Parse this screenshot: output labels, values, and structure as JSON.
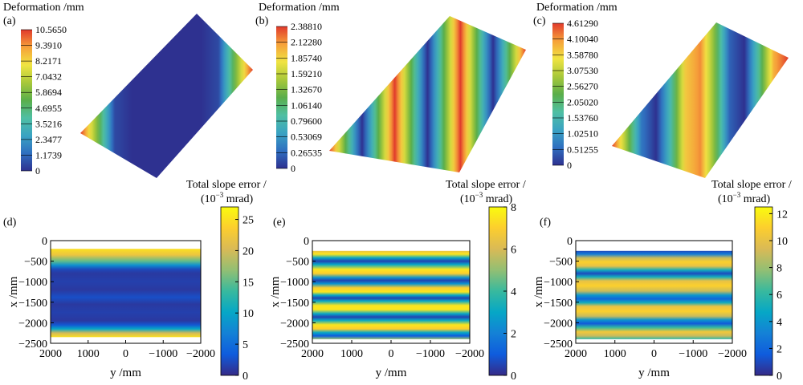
{
  "figure": {
    "panel_letters": [
      "(a)",
      "(b)",
      "(c)",
      "(d)",
      "(e)",
      "(f)"
    ],
    "deformation_title": "Deformation /mm",
    "slope_title_line1": "Total slope error /",
    "slope_title_line2_base": "(10",
    "slope_title_line2_exp": "−3",
    "slope_title_line2_unit": " mrad)",
    "xlabel": "y /mm",
    "ylabel": "x /mm"
  },
  "colormaps": {
    "jet": [
      "#2e3190",
      "#2f6fc0",
      "#3aa3c2",
      "#4fbfa3",
      "#5aae4a",
      "#a8c83a",
      "#f0e442",
      "#f6a13a",
      "#e03a2c"
    ],
    "parula": [
      "#352a87",
      "#0f5cdd",
      "#1481d6",
      "#06a7c6",
      "#38b99e",
      "#92bf73",
      "#d9ba56",
      "#fcce2e",
      "#f9fb0e"
    ]
  },
  "chart_data": [
    {
      "panel": "(a)",
      "type": "heatmap",
      "title": "Deformation /mm",
      "colorbar_ticks": [
        "10.5650",
        "9.3910",
        "8.2171",
        "7.0432",
        "5.8694",
        "4.6955",
        "3.5216",
        "2.3477",
        "1.1739",
        "0"
      ],
      "surface_profile": [
        1.0,
        0.55,
        0.05,
        0.0,
        0.0,
        0.0,
        0.0,
        0.0,
        0.05,
        0.55,
        1.0
      ]
    },
    {
      "panel": "(b)",
      "type": "heatmap",
      "title": "Deformation /mm",
      "colorbar_ticks": [
        "2.38810",
        "2.12280",
        "1.85740",
        "1.59210",
        "1.32670",
        "1.06140",
        "0.79600",
        "0.53069",
        "0.26535",
        "0"
      ],
      "surface_profile": [
        1.0,
        0.5,
        0.0,
        0.5,
        1.0,
        0.5,
        0.0,
        0.5,
        1.0,
        0.5,
        0.0,
        0.5,
        1.0
      ]
    },
    {
      "panel": "(c)",
      "type": "heatmap",
      "title": "Deformation /mm",
      "colorbar_ticks": [
        "4.61290",
        "4.10040",
        "3.58780",
        "3.07530",
        "2.56270",
        "2.05020",
        "1.53760",
        "1.02510",
        "0.51255",
        "0"
      ],
      "surface_profile": [
        1.0,
        0.6,
        0.15,
        0.0,
        0.35,
        0.8,
        0.9,
        0.55,
        0.1,
        0.0,
        0.4,
        0.85,
        1.0
      ]
    },
    {
      "panel": "(d)",
      "type": "heatmap",
      "title": "Total slope error / (10^-3 mrad)",
      "xlabel": "y /mm",
      "ylabel": "x /mm",
      "x_ticks": [
        2000,
        1000,
        0,
        -1000,
        -2000
      ],
      "y_ticks": [
        0,
        -500,
        -1000,
        -1500,
        -2000,
        -2500
      ],
      "xlim": [
        2000,
        -2000
      ],
      "ylim": [
        -2500,
        0
      ],
      "colorbar_range": [
        0,
        27
      ],
      "colorbar_ticks": [
        0,
        5,
        10,
        15,
        20,
        25
      ],
      "data_extent_x": [
        -200,
        -2350
      ],
      "row_profile": [
        [
          -200,
          25
        ],
        [
          -350,
          22
        ],
        [
          -500,
          15
        ],
        [
          -600,
          8
        ],
        [
          -700,
          2
        ],
        [
          -800,
          1
        ],
        [
          -1000,
          1.5
        ],
        [
          -1200,
          1
        ],
        [
          -1380,
          2.5
        ],
        [
          -1550,
          1
        ],
        [
          -1750,
          1.5
        ],
        [
          -1950,
          1
        ],
        [
          -2050,
          3
        ],
        [
          -2150,
          10
        ],
        [
          -2250,
          20
        ],
        [
          -2350,
          25
        ]
      ]
    },
    {
      "panel": "(e)",
      "type": "heatmap",
      "title": "Total slope error / (10^-3 mrad)",
      "xlabel": "y /mm",
      "ylabel": "x /mm",
      "x_ticks": [
        2000,
        1000,
        0,
        -1000,
        -2000
      ],
      "y_ticks": [
        0,
        -500,
        -1000,
        -1500,
        -2000,
        -2500
      ],
      "xlim": [
        2000,
        -2000
      ],
      "ylim": [
        -2500,
        0
      ],
      "colorbar_range": [
        0,
        8
      ],
      "colorbar_ticks": [
        0,
        2,
        4,
        6,
        8
      ],
      "data_extent_x": [
        -250,
        -2400
      ],
      "row_profile": [
        [
          -250,
          6.5
        ],
        [
          -330,
          7.5
        ],
        [
          -420,
          3
        ],
        [
          -500,
          0.5
        ],
        [
          -580,
          3
        ],
        [
          -700,
          7.5
        ],
        [
          -800,
          7
        ],
        [
          -900,
          2.5
        ],
        [
          -970,
          0.5
        ],
        [
          -1050,
          2.5
        ],
        [
          -1150,
          7
        ],
        [
          -1250,
          7.5
        ],
        [
          -1330,
          3
        ],
        [
          -1400,
          0.5
        ],
        [
          -1470,
          3
        ],
        [
          -1580,
          7.5
        ],
        [
          -1680,
          7.5
        ],
        [
          -1780,
          3
        ],
        [
          -1860,
          0.5
        ],
        [
          -1940,
          3
        ],
        [
          -2050,
          7.5
        ],
        [
          -2150,
          7
        ],
        [
          -2240,
          3
        ],
        [
          -2320,
          1
        ],
        [
          -2400,
          5
        ]
      ]
    },
    {
      "panel": "(f)",
      "type": "heatmap",
      "title": "Total slope error / (10^-3 mrad)",
      "xlabel": "y /mm",
      "ylabel": "x /mm",
      "x_ticks": [
        2000,
        1000,
        0,
        -1000,
        -2000
      ],
      "y_ticks": [
        0,
        -500,
        -1000,
        -1500,
        -2000,
        -2500
      ],
      "xlim": [
        2000,
        -2000
      ],
      "ylim": [
        -2500,
        0
      ],
      "colorbar_range": [
        0,
        12.5
      ],
      "colorbar_ticks": [
        0,
        2,
        4,
        6,
        8,
        10,
        12
      ],
      "data_extent_x": [
        -250,
        -2400
      ],
      "row_profile": [
        [
          -250,
          1
        ],
        [
          -330,
          3
        ],
        [
          -420,
          9
        ],
        [
          -520,
          11
        ],
        [
          -620,
          10
        ],
        [
          -720,
          5
        ],
        [
          -800,
          1
        ],
        [
          -880,
          5
        ],
        [
          -980,
          10
        ],
        [
          -1100,
          11
        ],
        [
          -1230,
          9
        ],
        [
          -1330,
          4
        ],
        [
          -1420,
          2
        ],
        [
          -1510,
          5
        ],
        [
          -1600,
          10
        ],
        [
          -1720,
          11
        ],
        [
          -1840,
          9
        ],
        [
          -1930,
          4
        ],
        [
          -2020,
          1.5
        ],
        [
          -2110,
          6
        ],
        [
          -2220,
          10.5
        ],
        [
          -2320,
          9
        ],
        [
          -2400,
          6
        ]
      ]
    }
  ]
}
